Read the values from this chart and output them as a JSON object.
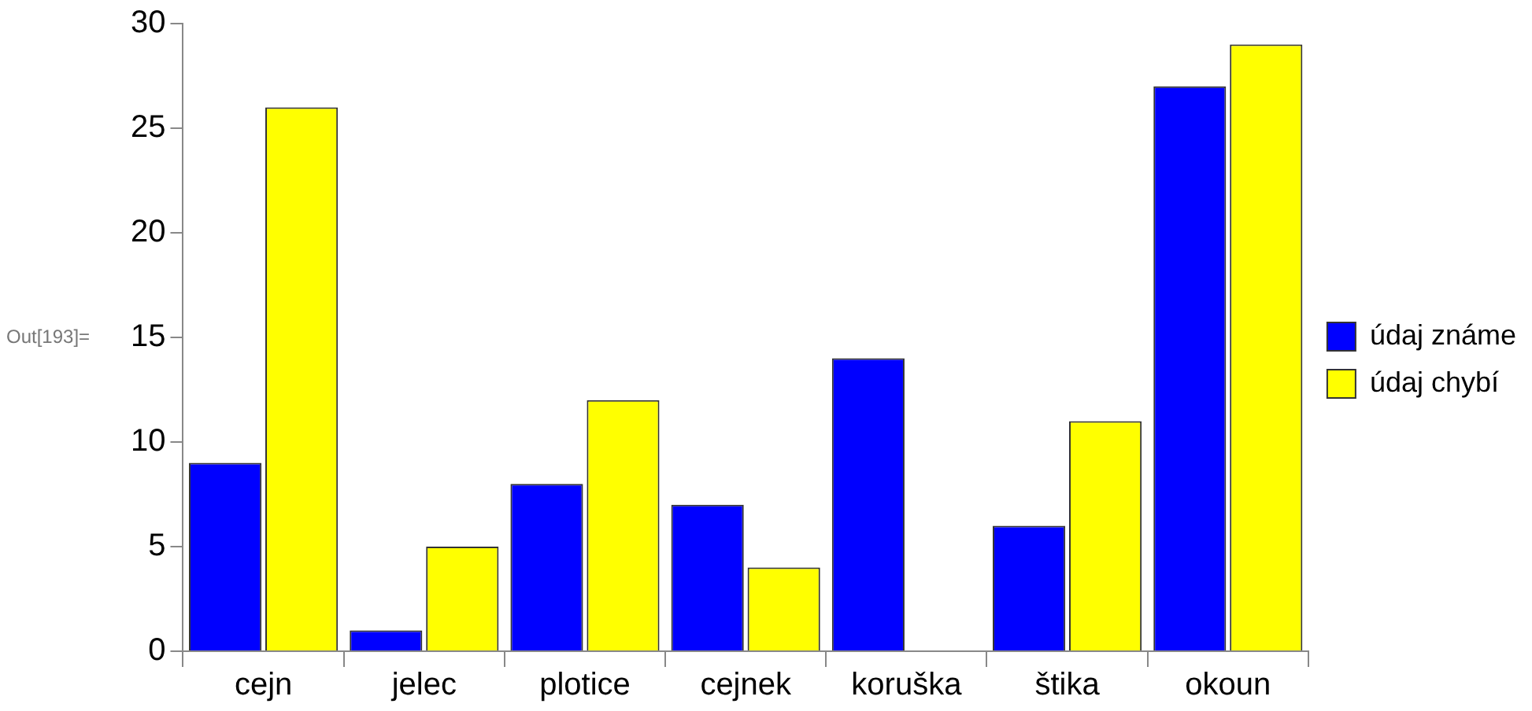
{
  "chart_data": {
    "type": "bar",
    "categories": [
      "cejn",
      "jelec",
      "plotice",
      "cejnek",
      "koruška",
      "štika",
      "okoun"
    ],
    "series": [
      {
        "name": "údaj známe",
        "color": "#0000ff",
        "values": [
          9,
          1,
          8,
          7,
          14,
          6,
          27
        ]
      },
      {
        "name": "údaj chybí",
        "color": "#ffff00",
        "values": [
          26,
          5,
          12,
          4,
          0,
          11,
          29
        ]
      }
    ],
    "ylim": [
      0,
      30
    ],
    "yticks": [
      0,
      5,
      10,
      15,
      20,
      25,
      30
    ],
    "legend": "right",
    "annotations": [
      "Out[193]="
    ]
  }
}
